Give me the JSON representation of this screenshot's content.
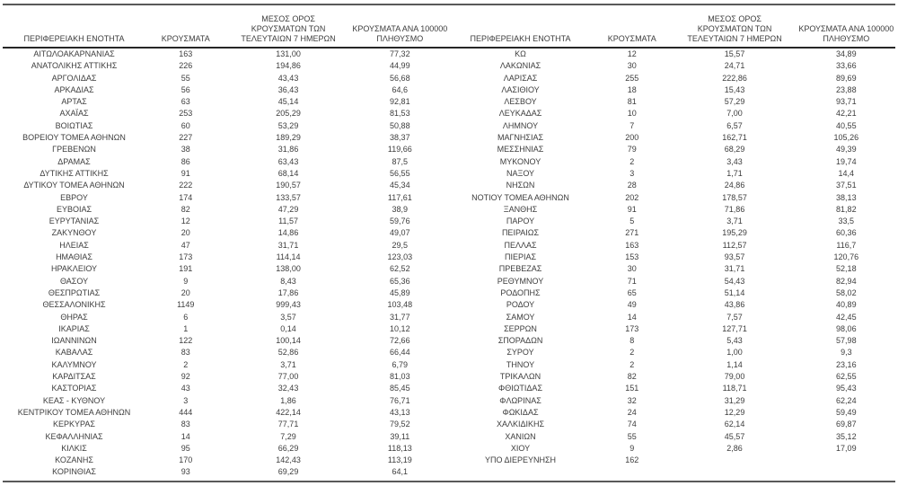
{
  "chart_data": {
    "type": "table",
    "title": "",
    "columns": [
      "ΠΕΡΙΦΕΡΕΙΑΚΗ ΕΝΟΤΗΤΑ",
      "ΚΡΟΥΣΜΑΤΑ",
      "ΜΕΣΟΣ ΟΡΟΣ ΚΡΟΥΣΜΑΤΩΝ ΤΩΝ ΤΕΛΕΥΤΑΙΩΝ 7 ΗΜΕΡΩΝ",
      "ΚΡΟΥΣΜΑΤΑ ΑΝΑ 100000 ΠΛΗΘΥΣΜΟ"
    ],
    "left_rows": [
      [
        "ΑΙΤΩΛΟΑΚΑΡΝΑΝΙΑΣ",
        "163",
        "131,00",
        "77,32"
      ],
      [
        "ΑΝΑΤΟΛΙΚΗΣ ΑΤΤΙΚΗΣ",
        "226",
        "194,86",
        "44,99"
      ],
      [
        "ΑΡΓΟΛΙΔΑΣ",
        "55",
        "43,43",
        "56,68"
      ],
      [
        "ΑΡΚΑΔΙΑΣ",
        "56",
        "36,43",
        "64,6"
      ],
      [
        "ΑΡΤΑΣ",
        "63",
        "45,14",
        "92,81"
      ],
      [
        "ΑΧΑΪΑΣ",
        "253",
        "205,29",
        "81,53"
      ],
      [
        "ΒΟΙΩΤΙΑΣ",
        "60",
        "53,29",
        "50,88"
      ],
      [
        "ΒΟΡΕΙΟΥ ΤΟΜΕΑ ΑΘΗΝΩΝ",
        "227",
        "189,29",
        "38,37"
      ],
      [
        "ΓΡΕΒΕΝΩΝ",
        "38",
        "31,86",
        "119,66"
      ],
      [
        "ΔΡΑΜΑΣ",
        "86",
        "63,43",
        "87,5"
      ],
      [
        "ΔΥΤΙΚΗΣ ΑΤΤΙΚΗΣ",
        "91",
        "68,14",
        "56,55"
      ],
      [
        "ΔΥΤΙΚΟΥ ΤΟΜΕΑ ΑΘΗΝΩΝ",
        "222",
        "190,57",
        "45,34"
      ],
      [
        "ΕΒΡΟΥ",
        "174",
        "133,57",
        "117,61"
      ],
      [
        "ΕΥΒΟΙΑΣ",
        "82",
        "47,29",
        "38,9"
      ],
      [
        "ΕΥΡΥΤΑΝΙΑΣ",
        "12",
        "11,57",
        "59,76"
      ],
      [
        "ΖΑΚΥΝΘΟΥ",
        "20",
        "14,86",
        "49,07"
      ],
      [
        "ΗΛΕΙΑΣ",
        "47",
        "31,71",
        "29,5"
      ],
      [
        "ΗΜΑΘΙΑΣ",
        "173",
        "114,14",
        "123,03"
      ],
      [
        "ΗΡΑΚΛΕΙΟΥ",
        "191",
        "138,00",
        "62,52"
      ],
      [
        "ΘΑΣΟΥ",
        "9",
        "8,43",
        "65,36"
      ],
      [
        "ΘΕΣΠΡΩΤΙΑΣ",
        "20",
        "17,86",
        "45,89"
      ],
      [
        "ΘΕΣΣΑΛΟΝΙΚΗΣ",
        "1149",
        "999,43",
        "103,48"
      ],
      [
        "ΘΗΡΑΣ",
        "6",
        "3,57",
        "31,77"
      ],
      [
        "ΙΚΑΡΙΑΣ",
        "1",
        "0,14",
        "10,12"
      ],
      [
        "ΙΩΑΝΝΙΝΩΝ",
        "122",
        "100,14",
        "72,66"
      ],
      [
        "ΚΑΒΑΛΑΣ",
        "83",
        "52,86",
        "66,44"
      ],
      [
        "ΚΑΛΥΜΝΟΥ",
        "2",
        "3,71",
        "6,79"
      ],
      [
        "ΚΑΡΔΙΤΣΑΣ",
        "92",
        "77,00",
        "81,03"
      ],
      [
        "ΚΑΣΤΟΡΙΑΣ",
        "43",
        "32,43",
        "85,45"
      ],
      [
        "ΚΕΑΣ - ΚΥΘΝΟΥ",
        "3",
        "1,86",
        "76,71"
      ],
      [
        "ΚΕΝΤΡΙΚΟΥ ΤΟΜΕΑ ΑΘΗΝΩΝ",
        "444",
        "422,14",
        "43,13"
      ],
      [
        "ΚΕΡΚΥΡΑΣ",
        "83",
        "77,71",
        "79,52"
      ],
      [
        "ΚΕΦΑΛΛΗΝΙΑΣ",
        "14",
        "7,29",
        "39,11"
      ],
      [
        "ΚΙΛΚΙΣ",
        "95",
        "66,29",
        "118,13"
      ],
      [
        "ΚΟΖΑΝΗΣ",
        "170",
        "142,43",
        "113,19"
      ],
      [
        "ΚΟΡΙΝΘΙΑΣ",
        "93",
        "69,29",
        "64,1"
      ]
    ],
    "right_rows": [
      [
        "ΚΩ",
        "12",
        "15,57",
        "34,89"
      ],
      [
        "ΛΑΚΩΝΙΑΣ",
        "30",
        "24,71",
        "33,66"
      ],
      [
        "ΛΑΡΙΣΑΣ",
        "255",
        "222,86",
        "89,69"
      ],
      [
        "ΛΑΣΙΘΙΟΥ",
        "18",
        "15,43",
        "23,88"
      ],
      [
        "ΛΕΣΒΟΥ",
        "81",
        "57,29",
        "93,71"
      ],
      [
        "ΛΕΥΚΑΔΑΣ",
        "10",
        "7,00",
        "42,21"
      ],
      [
        "ΛΗΜΝΟΥ",
        "7",
        "6,57",
        "40,55"
      ],
      [
        "ΜΑΓΝΗΣΙΑΣ",
        "200",
        "162,71",
        "105,26"
      ],
      [
        "ΜΕΣΣΗΝΙΑΣ",
        "79",
        "68,29",
        "49,39"
      ],
      [
        "ΜΥΚΟΝΟΥ",
        "2",
        "3,43",
        "19,74"
      ],
      [
        "ΝΑΞΟΥ",
        "3",
        "1,71",
        "14,4"
      ],
      [
        "ΝΗΣΩΝ",
        "28",
        "24,86",
        "37,51"
      ],
      [
        "ΝΟΤΙΟΥ ΤΟΜΕΑ ΑΘΗΝΩΝ",
        "202",
        "178,57",
        "38,13"
      ],
      [
        "ΞΑΝΘΗΣ",
        "91",
        "71,86",
        "81,82"
      ],
      [
        "ΠΑΡΟΥ",
        "5",
        "3,71",
        "33,5"
      ],
      [
        "ΠΕΙΡΑΙΩΣ",
        "271",
        "195,29",
        "60,36"
      ],
      [
        "ΠΕΛΛΑΣ",
        "163",
        "112,57",
        "116,7"
      ],
      [
        "ΠΙΕΡΙΑΣ",
        "153",
        "93,57",
        "120,76"
      ],
      [
        "ΠΡΕΒΕΖΑΣ",
        "30",
        "31,71",
        "52,18"
      ],
      [
        "ΡΕΘΥΜΝΟΥ",
        "71",
        "54,43",
        "82,94"
      ],
      [
        "ΡΟΔΟΠΗΣ",
        "65",
        "51,14",
        "58,02"
      ],
      [
        "ΡΟΔΟΥ",
        "49",
        "43,86",
        "40,89"
      ],
      [
        "ΣΑΜΟΥ",
        "14",
        "7,57",
        "42,45"
      ],
      [
        "ΣΕΡΡΩΝ",
        "173",
        "127,71",
        "98,06"
      ],
      [
        "ΣΠΟΡΑΔΩΝ",
        "8",
        "5,43",
        "57,98"
      ],
      [
        "ΣΥΡΟΥ",
        "2",
        "1,00",
        "9,3"
      ],
      [
        "ΤΗΝΟΥ",
        "2",
        "1,14",
        "23,16"
      ],
      [
        "ΤΡΙΚΑΛΩΝ",
        "82",
        "79,00",
        "62,55"
      ],
      [
        "ΦΘΙΩΤΙΔΑΣ",
        "151",
        "118,71",
        "95,43"
      ],
      [
        "ΦΛΩΡΙΝΑΣ",
        "32",
        "31,29",
        "62,24"
      ],
      [
        "ΦΩΚΙΔΑΣ",
        "24",
        "12,29",
        "59,49"
      ],
      [
        "ΧΑΛΚΙΔΙΚΗΣ",
        "74",
        "62,14",
        "69,87"
      ],
      [
        "ΧΑΝΙΩΝ",
        "55",
        "45,57",
        "35,12"
      ],
      [
        "ΧΙΟΥ",
        "9",
        "2,86",
        "17,09"
      ],
      [
        "ΥΠΟ ΔΙΕΡΕΥΝΗΣΗ",
        "162",
        "",
        ""
      ]
    ]
  },
  "headers": {
    "region": "ΠΕΡΙΦΕΡΕΙΑΚΗ ΕΝΟΤΗΤΑ",
    "cases": "ΚΡΟΥΣΜΑΤΑ",
    "avg7": "ΜΕΣΟΣ ΟΡΟΣ\nΚΡΟΥΣΜΑΤΩΝ ΤΩΝ\nΤΕΛΕΥΤΑΙΩΝ 7 ΗΜΕΡΩΝ",
    "per100k": "ΚΡΟΥΣΜΑΤΑ ΑΝΑ 100000\nΠΛΗΘΥΣΜΟ"
  },
  "colors": {
    "text": "#3d3d3d",
    "rule_outer": "#595959",
    "rule_header": "#262626",
    "background": "#ffffff"
  }
}
